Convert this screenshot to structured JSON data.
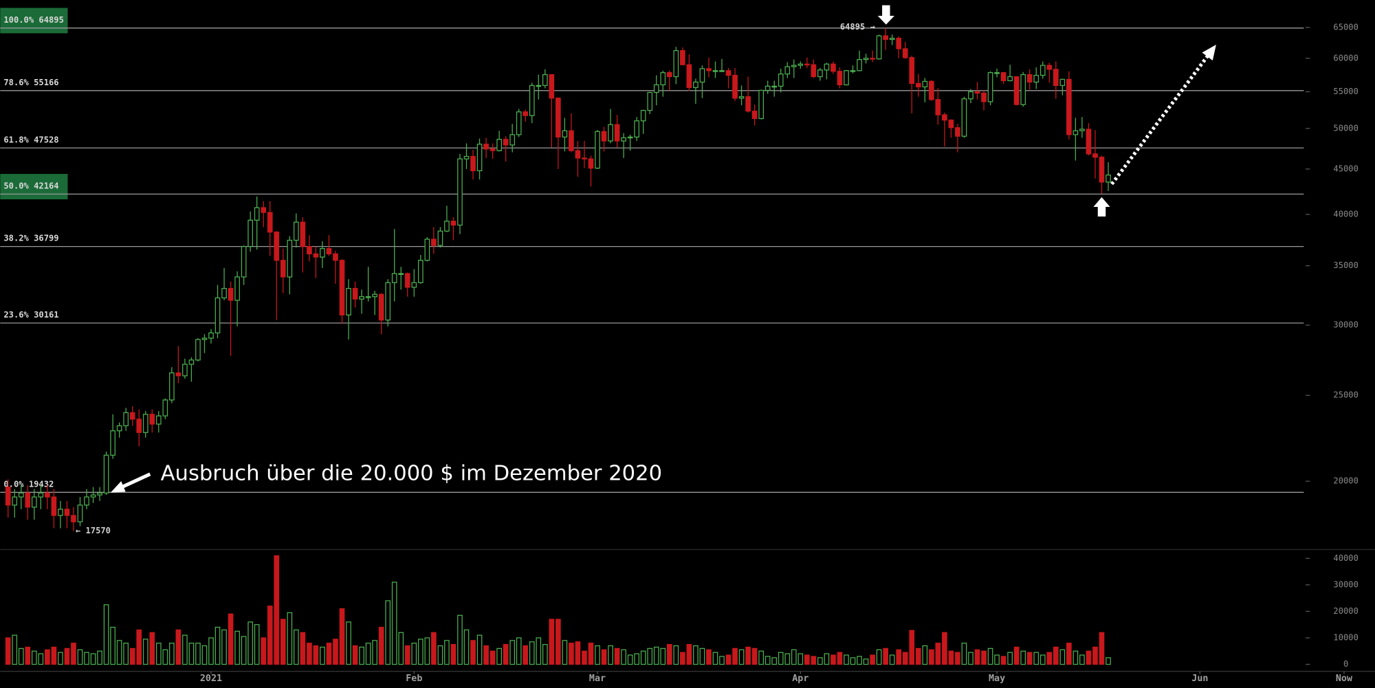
{
  "chart_data": {
    "type": "candlestick",
    "log_scale": true,
    "xlim": [
      -1.2,
      208.7
    ],
    "xticks": [
      {
        "value": 31,
        "label": "2021"
      },
      {
        "value": 62,
        "label": "Feb"
      },
      {
        "value": 90,
        "label": "Mar"
      },
      {
        "value": 121,
        "label": "Apr"
      },
      {
        "value": 151,
        "label": "May"
      },
      {
        "value": 182,
        "label": "Jun"
      },
      {
        "value": 204,
        "label": "Now"
      }
    ],
    "ylim": [
      16750,
      69800
    ],
    "yticks": [
      20000,
      25000,
      30000,
      35000,
      40000,
      45000,
      50000,
      55000,
      60000,
      65000
    ],
    "up_color": "#4caf50",
    "down_color": "#c8181c",
    "open": [
      19700,
      18800,
      19200,
      19400,
      18700,
      19200,
      19400,
      19200,
      18300,
      18600,
      18300,
      18000,
      18800,
      19200,
      19300,
      19400,
      21400,
      22800,
      23100,
      23900,
      23500,
      22700,
      23800,
      23200,
      23700,
      24700,
      26500,
      26300,
      27100,
      27400,
      28900,
      29000,
      29400,
      32200,
      33000,
      32000,
      34000,
      36800,
      39400,
      40700,
      40200,
      38200,
      35500,
      34000,
      37400,
      39200,
      36800,
      36100,
      35800,
      36600,
      36100,
      35500,
      30800,
      33000,
      32100,
      32300,
      32300,
      32500,
      30400,
      33500,
      34300,
      34300,
      33100,
      33500,
      35500,
      37500,
      36900,
      38300,
      39300,
      38900,
      46200,
      46500,
      44800,
      48000,
      47400,
      47200,
      48600,
      47900,
      49200,
      52200,
      51700,
      55900,
      55900,
      57500,
      54100,
      48900,
      49700,
      47200,
      46300,
      46200,
      45100,
      49600,
      48400,
      50500,
      48400,
      48800,
      48900,
      51000,
      52400,
      54900,
      56000,
      57800,
      57200,
      61200,
      59000,
      55600,
      56400,
      58400,
      58100,
      58100,
      58100,
      57400,
      54100,
      54300,
      52300,
      51300,
      55200,
      55800,
      55800,
      57600,
      58700,
      58900,
      59100,
      59000,
      57200,
      58200,
      59100,
      58000,
      56000,
      58100,
      58100,
      59800,
      60000,
      59900,
      63600,
      63000,
      63200,
      61500,
      60100,
      56200,
      55700,
      56500,
      53900,
      51800,
      51100,
      50100,
      49000,
      54000,
      55000,
      54800,
      53600,
      57800,
      57800,
      56600,
      57200,
      53200,
      57500,
      56400,
      57400,
      58900,
      58300,
      55900,
      56800,
      49200,
      49700,
      49900,
      46800,
      46400,
      43500
    ],
    "high": [
      20100,
      19600,
      19800,
      19800,
      19600,
      19800,
      19800,
      19600,
      19000,
      19000,
      18700,
      19200,
      19600,
      19700,
      19700,
      21600,
      23800,
      23300,
      24200,
      24300,
      24100,
      24000,
      24100,
      24000,
      24800,
      26900,
      28400,
      27500,
      27600,
      29000,
      29300,
      29700,
      33300,
      34800,
      33600,
      34500,
      36900,
      40300,
      41900,
      41400,
      41400,
      38300,
      36600,
      37800,
      40100,
      39700,
      37900,
      36800,
      37300,
      37900,
      36400,
      35600,
      33800,
      33600,
      32900,
      34900,
      32800,
      32600,
      33800,
      38500,
      34900,
      34400,
      34700,
      36000,
      37700,
      38700,
      38700,
      40900,
      39700,
      46800,
      48100,
      47300,
      48700,
      48800,
      48100,
      49700,
      49000,
      50600,
      52600,
      52500,
      56300,
      57500,
      58300,
      57500,
      54200,
      51400,
      52000,
      48400,
      48400,
      46600,
      49800,
      50200,
      52600,
      51800,
      49400,
      49200,
      51500,
      52500,
      55000,
      57400,
      58100,
      58100,
      61800,
      61700,
      60600,
      56900,
      58900,
      60100,
      59500,
      59900,
      58500,
      58500,
      55900,
      57200,
      53200,
      55300,
      56600,
      56600,
      58400,
      59400,
      59800,
      59500,
      60100,
      59800,
      58500,
      59300,
      59500,
      58600,
      58200,
      58900,
      61200,
      60700,
      61200,
      63800,
      64895,
      63800,
      63500,
      62600,
      60400,
      57600,
      57000,
      56700,
      55500,
      52100,
      51200,
      50600,
      54300,
      55400,
      56400,
      55200,
      58000,
      58400,
      57900,
      59000,
      57200,
      57900,
      58300,
      58600,
      59500,
      59300,
      59500,
      56900,
      58000,
      51400,
      51500,
      50700,
      49800,
      46600,
      45800
    ],
    "low": [
      18200,
      18200,
      18600,
      18100,
      18100,
      18600,
      18600,
      17700,
      17700,
      17700,
      17570,
      17800,
      18600,
      18900,
      19000,
      19300,
      21200,
      22400,
      22800,
      23100,
      21900,
      22400,
      22700,
      22700,
      23500,
      24500,
      25800,
      26100,
      25900,
      27300,
      27900,
      28600,
      29000,
      32000,
      27700,
      29900,
      33300,
      36300,
      36500,
      38700,
      35900,
      30400,
      32600,
      32500,
      36700,
      34400,
      35400,
      33900,
      34800,
      35900,
      33400,
      30100,
      28900,
      31400,
      30900,
      31900,
      30800,
      29300,
      29900,
      31900,
      32900,
      32300,
      32300,
      33400,
      35400,
      36100,
      36700,
      38200,
      37400,
      38000,
      45000,
      43800,
      43800,
      46300,
      46200,
      47100,
      45900,
      47000,
      48900,
      50900,
      50700,
      53900,
      55500,
      47600,
      45000,
      47100,
      47000,
      44100,
      45100,
      43000,
      45000,
      47100,
      48100,
      47600,
      46300,
      47200,
      48400,
      49300,
      51900,
      53100,
      54300,
      55200,
      56100,
      58900,
      55100,
      53300,
      54100,
      57100,
      57000,
      57900,
      55500,
      53700,
      53100,
      52100,
      50400,
      51200,
      54700,
      54300,
      54900,
      57000,
      57000,
      58400,
      58500,
      57000,
      56600,
      56800,
      57600,
      55500,
      55900,
      57700,
      58000,
      59200,
      59400,
      59800,
      61300,
      62100,
      60000,
      59900,
      52000,
      54300,
      53500,
      53700,
      50500,
      47700,
      48800,
      47000,
      48800,
      53400,
      53900,
      52400,
      53100,
      57100,
      56100,
      56500,
      53100,
      52900,
      55300,
      55400,
      56900,
      56300,
      54000,
      54500,
      48600,
      46000,
      48800,
      46600,
      43900,
      42200,
      42500
    ],
    "close": [
      18800,
      19200,
      19400,
      18700,
      19200,
      19400,
      19200,
      18300,
      18600,
      18300,
      18000,
      18800,
      19200,
      19300,
      19400,
      21400,
      22800,
      23100,
      23900,
      23500,
      22700,
      23800,
      23200,
      23700,
      24700,
      26500,
      26300,
      27100,
      27400,
      28900,
      29000,
      29400,
      32200,
      33000,
      32000,
      34000,
      36800,
      39400,
      40700,
      40200,
      38200,
      35500,
      34000,
      37400,
      39200,
      36800,
      36100,
      35800,
      36600,
      36100,
      35500,
      30800,
      33000,
      32100,
      32300,
      32300,
      32500,
      30400,
      33500,
      34300,
      34300,
      33100,
      33500,
      35500,
      37500,
      36900,
      38300,
      39300,
      38900,
      46200,
      46500,
      44800,
      48000,
      47400,
      47200,
      48600,
      47900,
      49200,
      52200,
      51700,
      55900,
      55900,
      57500,
      54100,
      48900,
      49700,
      47200,
      46300,
      46200,
      45100,
      49600,
      48400,
      50500,
      48400,
      48800,
      48900,
      51000,
      52400,
      54900,
      56000,
      57800,
      57200,
      61200,
      59000,
      55600,
      56400,
      58400,
      58100,
      58100,
      58100,
      57400,
      54100,
      54300,
      52300,
      51300,
      55200,
      55800,
      55800,
      57600,
      58700,
      58900,
      59100,
      59000,
      57200,
      58200,
      59100,
      58000,
      56000,
      58100,
      58100,
      59800,
      60000,
      59900,
      63600,
      63000,
      63200,
      61500,
      60100,
      56200,
      55700,
      56500,
      53900,
      51800,
      51100,
      50100,
      49000,
      54000,
      55000,
      54800,
      53600,
      57800,
      57800,
      56600,
      57200,
      53200,
      57500,
      56400,
      57400,
      58900,
      58300,
      55900,
      56800,
      49200,
      49700,
      49900,
      46800,
      46400,
      43500,
      44300
    ],
    "volume": {
      "ylim": [
        0,
        43000
      ],
      "yticks": [
        0,
        10000,
        20000,
        30000,
        40000
      ],
      "values": [
        10000,
        11000,
        6000,
        6500,
        5000,
        4000,
        5500,
        6500,
        4500,
        6000,
        8000,
        5500,
        4500,
        4000,
        5000,
        22500,
        14000,
        9000,
        8000,
        6000,
        13000,
        9500,
        12000,
        8000,
        5500,
        8000,
        13000,
        11000,
        8000,
        8000,
        7000,
        10000,
        14000,
        13000,
        19000,
        12500,
        10500,
        16000,
        15000,
        10000,
        22000,
        41000,
        17000,
        19500,
        13000,
        12000,
        8000,
        7000,
        6500,
        8000,
        9500,
        21000,
        16000,
        7000,
        6500,
        8000,
        9000,
        14000,
        24000,
        31000,
        12000,
        7000,
        8000,
        9500,
        10000,
        12000,
        7000,
        9000,
        7500,
        18500,
        13000,
        9000,
        11000,
        7000,
        5000,
        6000,
        7500,
        9000,
        10000,
        7000,
        8500,
        10000,
        7500,
        17000,
        17000,
        9000,
        8000,
        8500,
        5000,
        8000,
        7000,
        5500,
        7000,
        6000,
        5500,
        3500,
        4000,
        5000,
        6000,
        6500,
        6000,
        7500,
        7000,
        4500,
        7500,
        7000,
        6000,
        5500,
        4500,
        3000,
        3500,
        6000,
        5500,
        6500,
        6000,
        5000,
        3000,
        2500,
        4500,
        4000,
        5500,
        4000,
        3500,
        3000,
        2500,
        4000,
        3500,
        4500,
        3500,
        2500,
        3000,
        2000,
        3500,
        5500,
        6000,
        3500,
        5500,
        4500,
        12800,
        6000,
        7000,
        5500,
        8000,
        12000,
        5000,
        4500,
        8000,
        4500,
        5500,
        5000,
        6000,
        3500,
        3000,
        4500,
        6500,
        5000,
        4500,
        4500,
        3500,
        4500,
        6500,
        5500,
        8000,
        5000,
        3500,
        5000,
        6500,
        12000,
        2500
      ]
    },
    "fib_levels": [
      {
        "label": "100.0% 64895",
        "value": 64895,
        "highlight": true
      },
      {
        "label": "78.6% 55166",
        "value": 55166,
        "highlight": false
      },
      {
        "label": "61.8% 47528",
        "value": 47528,
        "highlight": false
      },
      {
        "label": "50.0% 42164",
        "value": 42164,
        "highlight": true
      },
      {
        "label": "38.2% 36799",
        "value": 36799,
        "highlight": false
      },
      {
        "label": "23.6% 30161",
        "value": 30161,
        "highlight": false
      },
      {
        "label": "0.0% 19432",
        "value": 19432,
        "highlight": false
      }
    ],
    "annotations": {
      "peak_label": "64895 →",
      "low_label": "← 17570",
      "text": "Ausbruch über die 20.000 $ im Dezember 2020"
    }
  }
}
